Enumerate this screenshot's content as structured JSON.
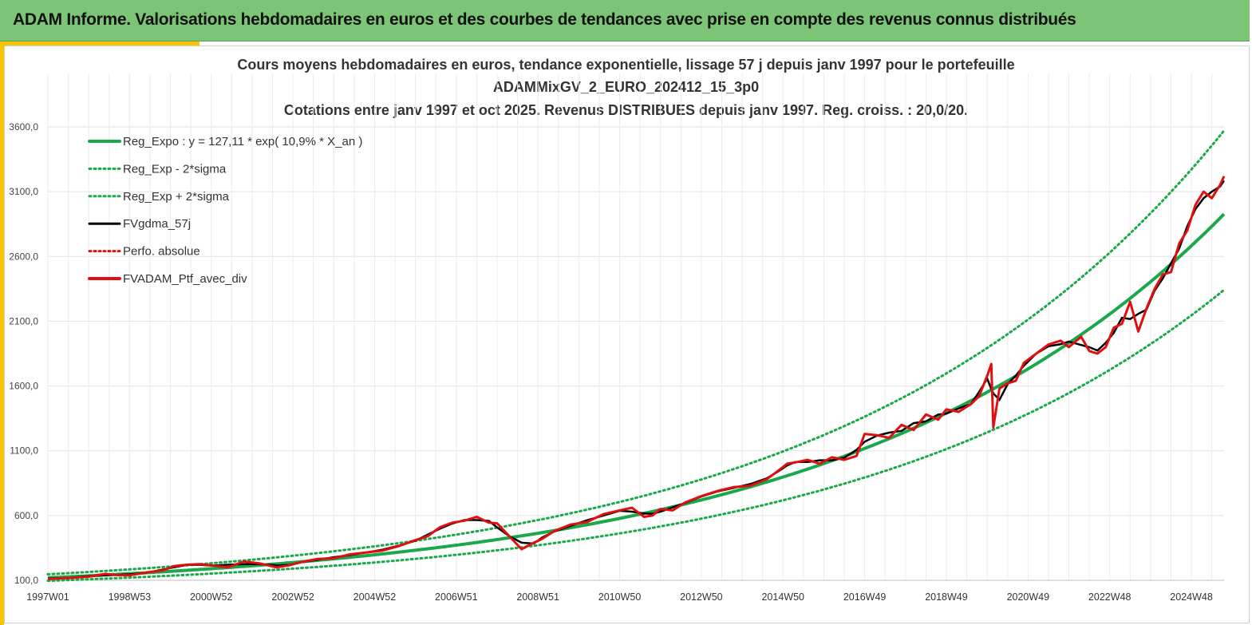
{
  "banner": {
    "title": "ADAM Informe. Valorisations hebdomadaires en euros et des courbes de tendances avec prise en compte des revenus connus distribués",
    "color": "#7cc576"
  },
  "chart_data": {
    "type": "line",
    "title": "Cours moyens hebdomadaires  en euros, tendance exponentielle, lissage 57 j depuis janv 1997 pour le portefeuille",
    "subtitle": "ADAMMixGV_2_EURO_202412_15_3p0",
    "subtitle2": "Cotations  entre janv 1997 et oct 2025. Revenus DISTRIBUES depuis janv 1997. Reg. croiss. : 20,0/20.",
    "xlabel": "",
    "ylabel": "",
    "xlim": [
      1997.0,
      2025.8
    ],
    "ylim": [
      100,
      3900
    ],
    "y_ticks": [
      100,
      600,
      1100,
      1600,
      2100,
      2600,
      3100,
      3600
    ],
    "y_tick_labels": [
      "100,0",
      "600,0",
      "1100,0",
      "1600,0",
      "2100,0",
      "2600,0",
      "3100,0",
      "3600,0"
    ],
    "x_tick_labels": [
      "1997W01",
      "1998W53",
      "2000W52",
      "2002W52",
      "2004W52",
      "2006W51",
      "2008W51",
      "2010W50",
      "2012W50",
      "2014W50",
      "2016W49",
      "2018W49",
      "2020W49",
      "2022W48",
      "2024W48"
    ],
    "x_ticks": [
      1997.0,
      1999.0,
      2001.0,
      2003.0,
      2005.0,
      2007.0,
      2009.0,
      2011.0,
      2013.0,
      2015.0,
      2017.0,
      2019.0,
      2021.0,
      2023.0,
      2025.0
    ],
    "grid": true,
    "legend_position": "top-left",
    "regression": {
      "a": 127.11,
      "rate": 0.109,
      "sigma_factor": 0.8,
      "sigma_factor_up": 1.22
    },
    "series": [
      {
        "name": "Reg_Expo : y = 127,11 * exp( 10,9% *  X_an )",
        "color": "#1aa84a",
        "style": "solid"
      },
      {
        "name": "Reg_Exp - 2*sigma",
        "color": "#1aa84a",
        "style": "dotted"
      },
      {
        "name": "Reg_Exp + 2*sigma",
        "color": "#1aa84a",
        "style": "dotted"
      },
      {
        "name": "FVgdma_57j",
        "color": "#000000",
        "style": "solid"
      },
      {
        "name": "Perfo. absolue",
        "color": "#e01010",
        "style": "dotted"
      },
      {
        "name": "FVADAM_Ptf_avec_div",
        "color": "#e01010",
        "style": "solid",
        "x": [
          1997.0,
          1997.5,
          1998.0,
          1998.4,
          1998.7,
          1999.0,
          1999.4,
          1999.8,
          2000.1,
          2000.4,
          2000.7,
          2001.0,
          2001.4,
          2001.8,
          2002.2,
          2002.6,
          2002.9,
          2003.2,
          2003.6,
          2004.0,
          2004.4,
          2004.8,
          2005.2,
          2005.6,
          2006.0,
          2006.3,
          2006.6,
          2006.9,
          2007.2,
          2007.5,
          2007.8,
          2008.0,
          2008.3,
          2008.6,
          2008.9,
          2009.1,
          2009.4,
          2009.8,
          2010.2,
          2010.6,
          2011.0,
          2011.3,
          2011.6,
          2011.8,
          2012.0,
          2012.3,
          2012.6,
          2013.0,
          2013.4,
          2013.8,
          2014.2,
          2014.6,
          2014.9,
          2015.1,
          2015.3,
          2015.6,
          2015.9,
          2016.2,
          2016.5,
          2016.8,
          2017.0,
          2017.3,
          2017.6,
          2017.9,
          2018.2,
          2018.5,
          2018.8,
          2019.0,
          2019.3,
          2019.6,
          2019.8,
          2020.0,
          2020.1,
          2020.15,
          2020.3,
          2020.5,
          2020.7,
          2020.9,
          2021.2,
          2021.5,
          2021.8,
          2022.0,
          2022.3,
          2022.5,
          2022.7,
          2022.9,
          2023.1,
          2023.3,
          2023.5,
          2023.7,
          2023.9,
          2024.1,
          2024.3,
          2024.5,
          2024.7,
          2024.9,
          2025.1,
          2025.3,
          2025.5,
          2025.7,
          2025.8
        ],
        "values": [
          110,
          118,
          128,
          150,
          140,
          138,
          160,
          175,
          210,
          220,
          225,
          215,
          200,
          245,
          230,
          200,
          215,
          240,
          265,
          270,
          300,
          315,
          330,
          365,
          410,
          440,
          510,
          545,
          560,
          590,
          545,
          540,
          440,
          340,
          390,
          420,
          480,
          530,
          550,
          610,
          640,
          660,
          590,
          600,
          650,
          640,
          700,
          750,
          790,
          820,
          830,
          880,
          950,
          1000,
          1010,
          1030,
          1000,
          1050,
          1030,
          1060,
          1230,
          1220,
          1200,
          1300,
          1260,
          1380,
          1340,
          1420,
          1400,
          1460,
          1520,
          1680,
          1770,
          1280,
          1580,
          1620,
          1640,
          1780,
          1850,
          1920,
          1950,
          1900,
          1980,
          1870,
          1850,
          1900,
          2050,
          2080,
          2250,
          2020,
          2200,
          2350,
          2460,
          2480,
          2700,
          2800,
          3000,
          3100,
          3050,
          3150,
          3220
        ]
      }
    ]
  }
}
